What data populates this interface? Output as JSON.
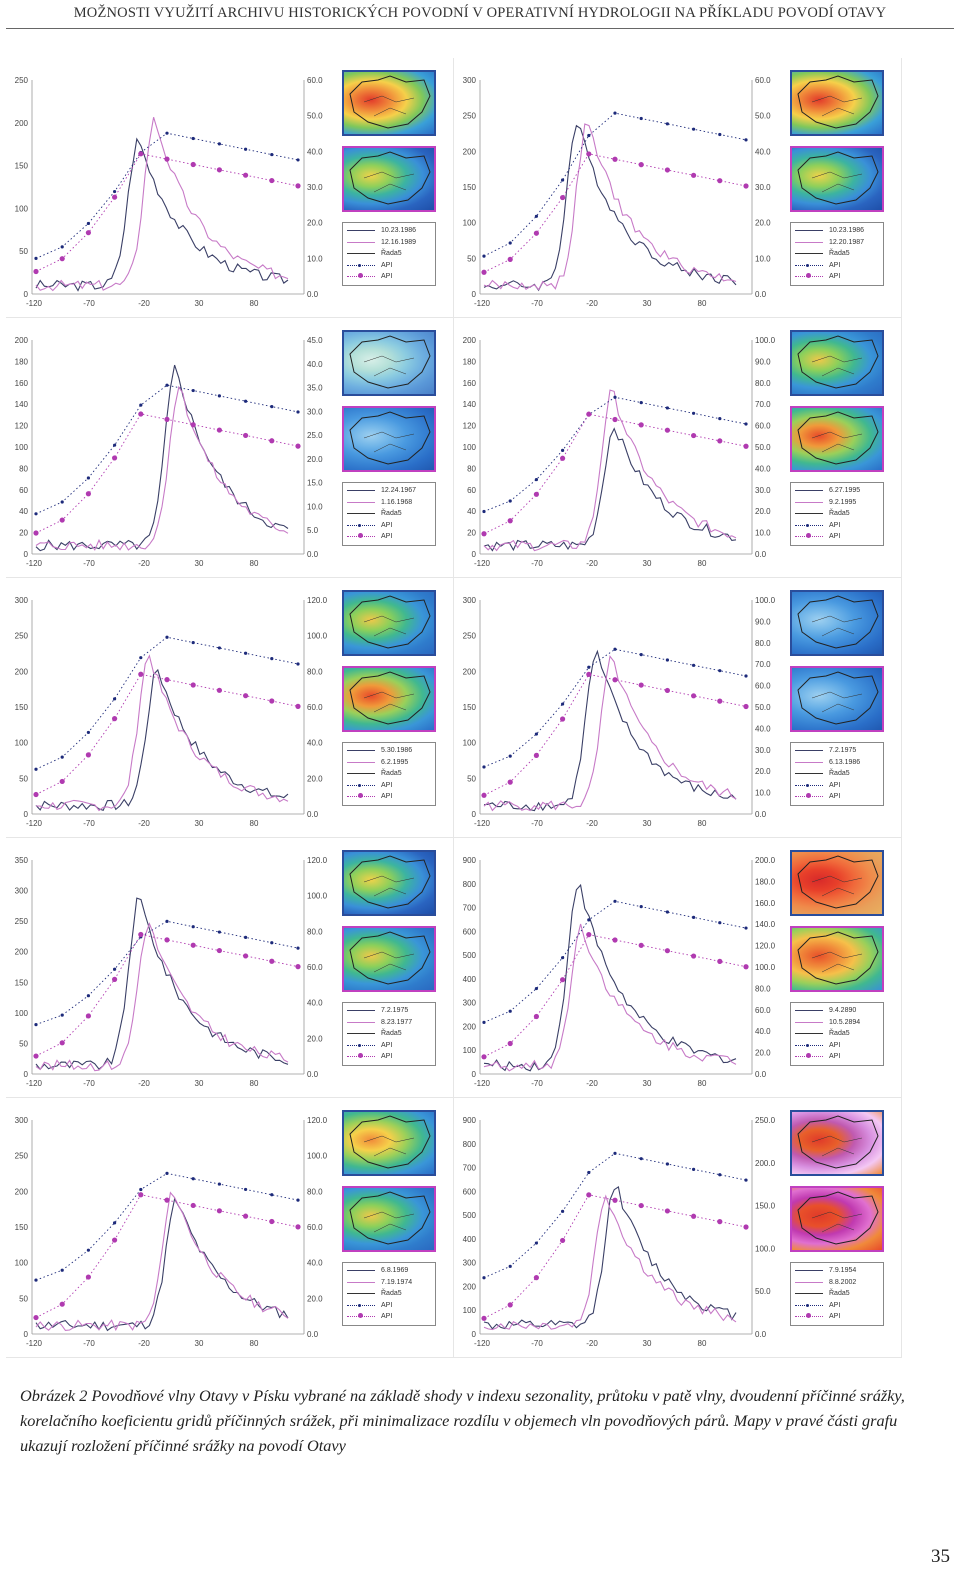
{
  "header": "MOŽNOSTI VYUŽITÍ ARCHIVU HISTORICKÝCH POVODNÍ V OPERATIVNÍ HYDROLOGII NA PŘÍKLADU POVODÍ OTAVY",
  "caption": "Obrázek 2 Povodňové vlny Otavy v Písku vybrané na základě shody v indexu sezonality, průtoku v patě vlny, dvoudenní příčinné srážky, korelačního koeficientu gridů příčinných srážek, při minimalizace rozdílu v objemech vln povodňových párů. Mapy v pravé části grafu ukazují rozložení příčinné srážky na povodí Otavy",
  "page_number": "35",
  "colors": {
    "series_a": "#3a3f66",
    "series_b": "#c77ac7",
    "api_a": "#1d2a7a",
    "api_b": "#b03ab0"
  },
  "x_ticks": [
    "-120",
    "-70",
    "-20",
    "30",
    "80"
  ],
  "legend_common": {
    "rada": "Řada5",
    "api1": "API",
    "api2": "API"
  },
  "panels": [
    {
      "id": "p1",
      "left_ticks": [
        "250",
        "200",
        "150",
        "100",
        "50",
        "0"
      ],
      "right_ticks": [
        "60.0",
        "50.0",
        "40.0",
        "30.0",
        "20.0",
        "10.0",
        "0.0"
      ],
      "legend": [
        "10.23.1986",
        "12.16.1989"
      ],
      "maps": [
        "nw-red",
        "blue-green"
      ]
    },
    {
      "id": "p2",
      "left_ticks": [
        "300",
        "250",
        "200",
        "150",
        "100",
        "50",
        "0"
      ],
      "right_ticks": [
        "60.0",
        "50.0",
        "40.0",
        "30.0",
        "20.0",
        "10.0",
        "0.0"
      ],
      "legend": [
        "10.23.1986",
        "12.20.1987"
      ],
      "maps": [
        "nw-red",
        "blue-green"
      ]
    },
    {
      "id": "p3",
      "left_ticks": [
        "200",
        "180",
        "160",
        "140",
        "120",
        "100",
        "80",
        "60",
        "40",
        "20",
        "0"
      ],
      "right_ticks": [
        "45.0",
        "40.0",
        "35.0",
        "30.0",
        "25.0",
        "20.0",
        "15.0",
        "10.0",
        "5.0",
        "0.0"
      ],
      "legend": [
        "12.24.1967",
        "1.16.1968"
      ],
      "maps": [
        "light-green",
        "blue"
      ]
    },
    {
      "id": "p4",
      "left_ticks": [
        "200",
        "180",
        "160",
        "140",
        "120",
        "100",
        "80",
        "60",
        "40",
        "20",
        "0"
      ],
      "right_ticks": [
        "100.0",
        "90.0",
        "80.0",
        "70.0",
        "60.0",
        "50.0",
        "40.0",
        "30.0",
        "20.0",
        "10.0",
        "0.0"
      ],
      "legend": [
        "6.27.1995",
        "9.2.1995"
      ],
      "maps": [
        "green",
        "green-red"
      ]
    },
    {
      "id": "p5",
      "left_ticks": [
        "300",
        "250",
        "200",
        "150",
        "100",
        "50",
        "0"
      ],
      "right_ticks": [
        "120.0",
        "100.0",
        "80.0",
        "60.0",
        "40.0",
        "20.0",
        "0.0"
      ],
      "legend": [
        "5.30.1986",
        "6.2.1995"
      ],
      "maps": [
        "green",
        "green-red"
      ]
    },
    {
      "id": "p6",
      "left_ticks": [
        "300",
        "250",
        "200",
        "150",
        "100",
        "50",
        "0"
      ],
      "right_ticks": [
        "100.0",
        "90.0",
        "80.0",
        "70.0",
        "60.0",
        "50.0",
        "40.0",
        "30.0",
        "20.0",
        "10.0",
        "0.0"
      ],
      "legend": [
        "7.2.1975",
        "6.13.1986"
      ],
      "maps": [
        "blue",
        "blue"
      ]
    },
    {
      "id": "p7",
      "left_ticks": [
        "350",
        "300",
        "250",
        "200",
        "150",
        "100",
        "50",
        "0"
      ],
      "right_ticks": [
        "120.0",
        "100.0",
        "80.0",
        "60.0",
        "40.0",
        "20.0",
        "0.0"
      ],
      "legend": [
        "7.2.1975",
        "8.23.1977"
      ],
      "maps": [
        "blue-green",
        "green"
      ]
    },
    {
      "id": "p8",
      "left_ticks": [
        "900",
        "800",
        "700",
        "600",
        "500",
        "400",
        "300",
        "200",
        "100",
        "0"
      ],
      "right_ticks": [
        "200.0",
        "180.0",
        "160.0",
        "140.0",
        "120.0",
        "100.0",
        "80.0",
        "60.0",
        "40.0",
        "20.0",
        "0.0"
      ],
      "legend": [
        "9.4.2890",
        "10.5.2894"
      ],
      "maps": [
        "red",
        "orange"
      ]
    },
    {
      "id": "p9",
      "left_ticks": [
        "300",
        "250",
        "200",
        "150",
        "100",
        "50",
        "0"
      ],
      "right_ticks": [
        "120.0",
        "100.0",
        "80.0",
        "60.0",
        "40.0",
        "20.0",
        "0.0"
      ],
      "legend": [
        "6.8.1969",
        "7.19.1974"
      ],
      "maps": [
        "green-orange",
        "green"
      ]
    },
    {
      "id": "p10",
      "left_ticks": [
        "900",
        "800",
        "700",
        "600",
        "500",
        "400",
        "300",
        "200",
        "100",
        "0"
      ],
      "right_ticks": [
        "250.0",
        "200.0",
        "150.0",
        "100.0",
        "50.0",
        "0.0"
      ],
      "legend": [
        "7.9.1954",
        "8.8.2002"
      ],
      "maps": [
        "red-violet",
        "red-magenta"
      ]
    }
  ]
}
